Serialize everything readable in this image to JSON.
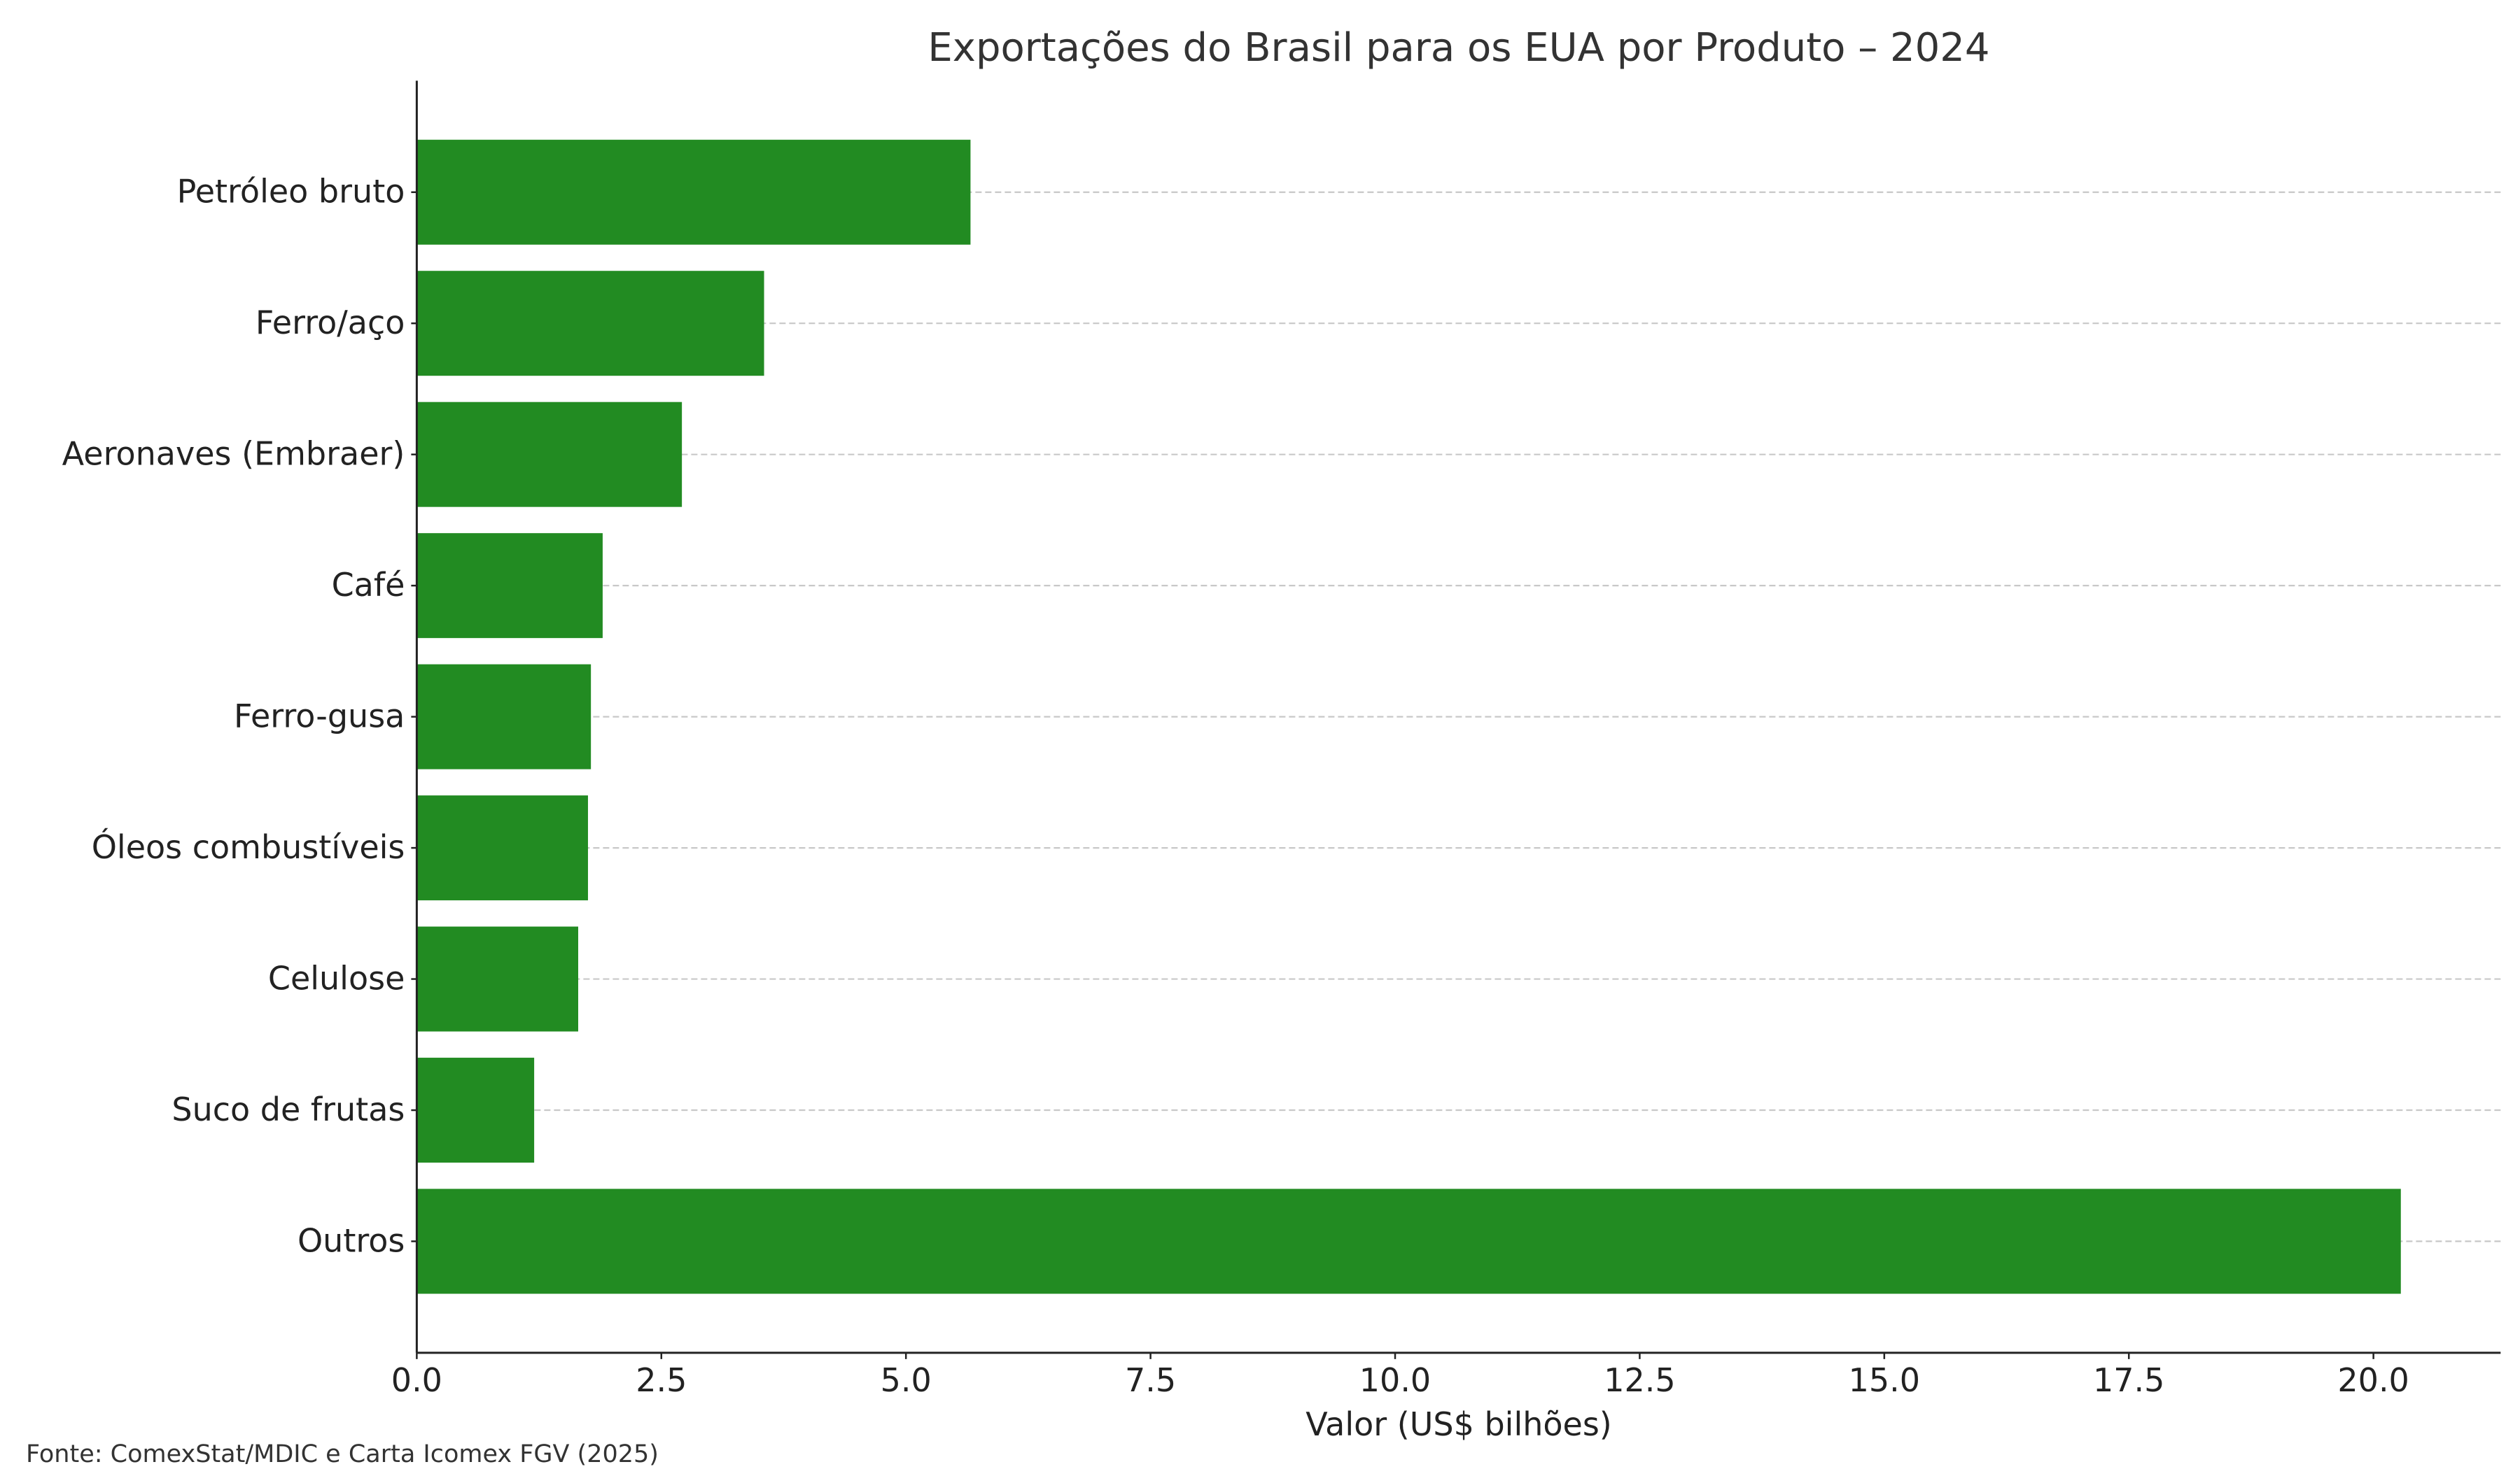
{
  "chart_data": {
    "type": "bar",
    "orientation": "horizontal",
    "title": "Exportações do Brasil para os EUA por Produto – 2024",
    "xlabel": "Valor (US$ bilhões)",
    "ylabel": "",
    "categories": [
      "Petróleo bruto",
      "Ferro/aço",
      "Aeronaves (Embraer)",
      "Café",
      "Ferro-gusa",
      "Óleos combustíveis",
      "Celulose",
      "Suco de frutas",
      "Outros"
    ],
    "values": [
      5.66,
      3.55,
      2.71,
      1.9,
      1.78,
      1.75,
      1.65,
      1.2,
      20.28
    ],
    "xlim": [
      0,
      21.3
    ],
    "xticks": [
      0,
      2.5,
      5,
      7.5,
      10,
      12.5,
      15,
      17.5,
      20
    ],
    "xtick_labels": [
      "0.0",
      "2.5",
      "5.0",
      "7.5",
      "10.0",
      "12.5",
      "15.0",
      "17.5",
      "20.0"
    ],
    "grid": "horizontal dashed",
    "bar_color": "#228b22"
  },
  "source_note": "Fonte: ComexStat/MDIC e Carta Icomex FGV (2025)"
}
